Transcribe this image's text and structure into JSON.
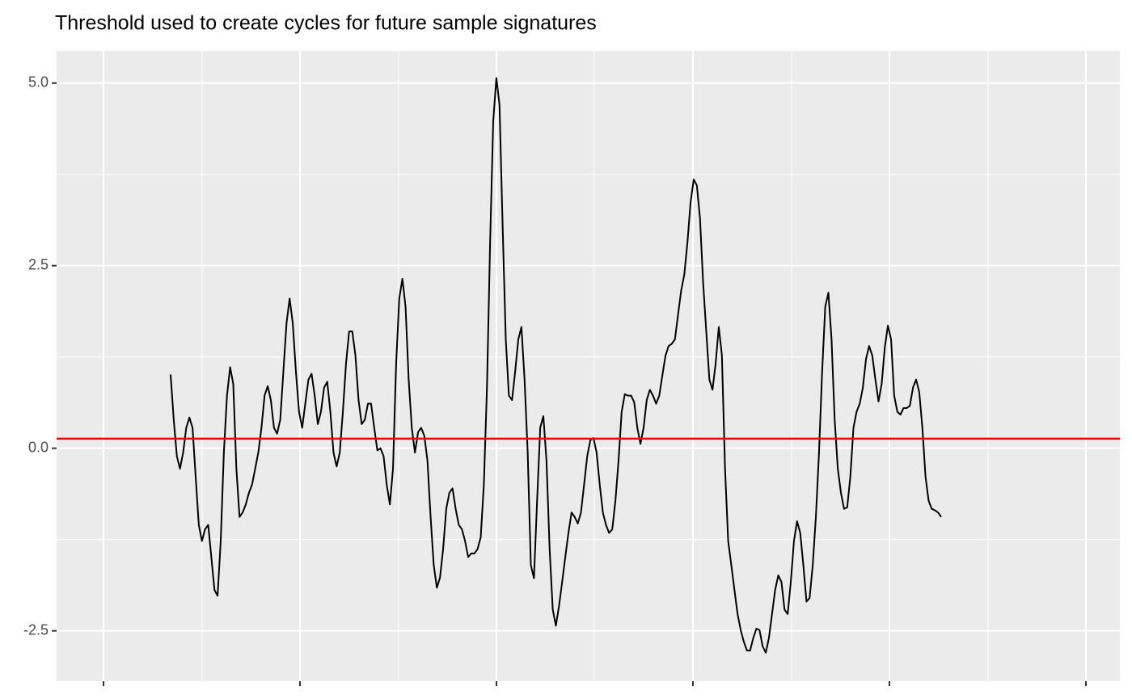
{
  "chart_data": {
    "type": "line",
    "title": "Threshold used to create cycles for future sample signatures",
    "series": [
      {
        "color": "#000000",
        "values": [
          1.01,
          0.39,
          -0.11,
          -0.28,
          -0.06,
          0.28,
          0.42,
          0.28,
          -0.39,
          -1.05,
          -1.27,
          -1.11,
          -1.05,
          -1.49,
          -1.94,
          -2.02,
          -1.27,
          -0.06,
          0.72,
          1.11,
          0.88,
          -0.28,
          -0.94,
          -0.88,
          -0.77,
          -0.61,
          -0.5,
          -0.28,
          -0.06,
          0.28,
          0.72,
          0.85,
          0.66,
          0.28,
          0.2,
          0.39,
          1.05,
          1.71,
          2.05,
          1.71,
          1.05,
          0.5,
          0.28,
          0.61,
          0.94,
          1.02,
          0.72,
          0.33,
          0.5,
          0.83,
          0.91,
          0.5,
          -0.06,
          -0.25,
          -0.06,
          0.5,
          1.16,
          1.6,
          1.6,
          1.27,
          0.66,
          0.33,
          0.39,
          0.61,
          0.61,
          0.28,
          -0.03,
          0,
          -0.11,
          -0.5,
          -0.77,
          -0.28,
          1.16,
          2.05,
          2.32,
          1.94,
          0.94,
          0.28,
          -0.06,
          0.22,
          0.28,
          0.17,
          -0.17,
          -0.94,
          -1.6,
          -1.91,
          -1.77,
          -1.38,
          -0.83,
          -0.61,
          -0.55,
          -0.83,
          -1.05,
          -1.11,
          -1.27,
          -1.49,
          -1.44,
          -1.44,
          -1.38,
          -1.22,
          -0.5,
          0.83,
          2.82,
          4.48,
          5.07,
          4.7,
          3.04,
          1.49,
          0.72,
          0.66,
          1.05,
          1.49,
          1.66,
          0.94,
          -0.06,
          -1.6,
          -1.78,
          -0.72,
          0.28,
          0.44,
          -0.17,
          -1.38,
          -2.21,
          -2.43,
          -2.16,
          -1.83,
          -1.49,
          -1.16,
          -0.88,
          -0.94,
          -1.03,
          -0.88,
          -0.5,
          -0.11,
          0.11,
          0.14,
          -0.06,
          -0.5,
          -0.88,
          -1.05,
          -1.16,
          -1.11,
          -0.72,
          -0.17,
          0.5,
          0.74,
          0.72,
          0.72,
          0.63,
          0.28,
          0.06,
          0.28,
          0.66,
          0.8,
          0.72,
          0.61,
          0.72,
          1.0,
          1.27,
          1.4,
          1.43,
          1.49,
          1.83,
          2.16,
          2.38,
          2.82,
          3.37,
          3.68,
          3.6,
          3.15,
          2.27,
          1.6,
          0.94,
          0.8,
          1.16,
          1.66,
          1.27,
          -0.28,
          -1.27,
          -1.6,
          -1.94,
          -2.27,
          -2.49,
          -2.65,
          -2.77,
          -2.77,
          -2.6,
          -2.47,
          -2.49,
          -2.71,
          -2.8,
          -2.6,
          -2.27,
          -1.94,
          -1.74,
          -1.83,
          -2.21,
          -2.27,
          -1.83,
          -1.27,
          -1.0,
          -1.16,
          -1.6,
          -2.1,
          -2.05,
          -1.6,
          -0.94,
          -0.06,
          1.05,
          1.94,
          2.13,
          1.49,
          0.39,
          -0.28,
          -0.61,
          -0.83,
          -0.81,
          -0.39,
          0.28,
          0.5,
          0.61,
          0.83,
          1.22,
          1.4,
          1.27,
          0.94,
          0.64,
          0.88,
          1.38,
          1.68,
          1.49,
          0.72,
          0.5,
          0.46,
          0.55,
          0.55,
          0.58,
          0.83,
          0.94,
          0.77,
          0.28,
          -0.39,
          -0.72,
          -0.83,
          -0.85,
          -0.88,
          -0.94
        ]
      }
    ],
    "threshold": {
      "value": 0.13,
      "color": "#ff0000"
    },
    "ylim": [
      -3.19,
      5.44
    ],
    "yticks": [
      {
        "value": -2.5,
        "label": "-2.5"
      },
      {
        "value": 0,
        "label": "0.0"
      },
      {
        "value": 2.5,
        "label": "2.5"
      },
      {
        "value": 5,
        "label": "5.0"
      }
    ],
    "grid": true
  }
}
